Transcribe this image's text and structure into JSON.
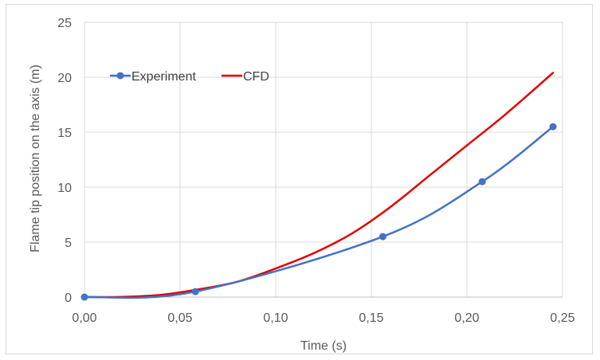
{
  "chart_data": {
    "type": "line",
    "title": "",
    "xlabel": "Time (s)",
    "ylabel": "Flame tip position on the axis (m)",
    "xlim": [
      0,
      0.25
    ],
    "ylim": [
      0,
      25
    ],
    "x_ticks": [
      "0,00",
      "0,05",
      "0,10",
      "0,15",
      "0,20",
      "0,25"
    ],
    "x_tick_values": [
      0,
      0.05,
      0.1,
      0.15,
      0.2,
      0.25
    ],
    "y_ticks": [
      "0",
      "5",
      "10",
      "15",
      "20",
      "25"
    ],
    "y_tick_values": [
      0,
      5,
      10,
      15,
      20,
      25
    ],
    "grid": true,
    "legend_position": "top-left",
    "series": [
      {
        "name": "Experiment",
        "color": "#4472c4",
        "markers": true,
        "x": [
          0.0,
          0.058,
          0.156,
          0.208,
          0.245
        ],
        "y": [
          0.0,
          0.5,
          5.5,
          10.5,
          15.5
        ]
      },
      {
        "name": "CFD",
        "color": "#e00000",
        "markers": false,
        "x": [
          0.0,
          0.02,
          0.04,
          0.058,
          0.08,
          0.1,
          0.12,
          0.14,
          0.16,
          0.18,
          0.2,
          0.22,
          0.245
        ],
        "y": [
          0.0,
          0.02,
          0.2,
          0.65,
          1.4,
          2.6,
          4.0,
          5.8,
          8.2,
          11.0,
          13.8,
          16.6,
          20.4
        ]
      }
    ]
  }
}
